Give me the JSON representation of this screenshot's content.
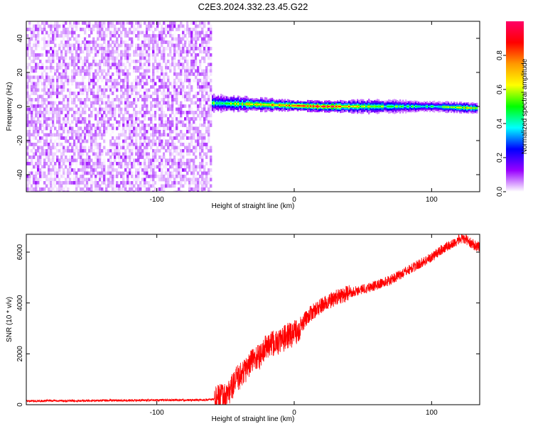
{
  "title": "C2E3.2024.332.23.45.G22",
  "chart_data": [
    {
      "type": "heatmap",
      "xlabel": "Height of straight line (km)",
      "ylabel": "Frequency (Hz)",
      "xlim": [
        -195,
        135
      ],
      "ylim": [
        -50,
        50
      ],
      "x_ticks": [
        -100,
        0,
        100
      ],
      "y_ticks": [
        -40,
        -20,
        0,
        20,
        40
      ],
      "noise_region": {
        "x": [
          -195,
          -60
        ],
        "y": [
          -50,
          50
        ],
        "value_range": [
          0.0,
          0.12
        ]
      },
      "signal_band": {
        "x": [
          -60,
          0,
          20,
          60,
          100,
          133
        ],
        "center_frequency": [
          2,
          0.5,
          0,
          0,
          0,
          -1
        ],
        "half_width_hz": [
          5,
          3,
          3,
          4,
          3,
          3
        ],
        "peak_amplitude": [
          0.5,
          0.8,
          0.95,
          0.5,
          0.45,
          0.7
        ]
      },
      "colorbar": {
        "label": "Normalized spectral amplitude",
        "range": [
          0,
          1
        ],
        "ticks": [
          0.0,
          0.2,
          0.4,
          0.6,
          0.8
        ],
        "tick_labels": [
          "0.0",
          "0.2",
          "0.4",
          "0.6",
          "0.8"
        ],
        "colors": [
          "#ffffff",
          "#9900ff",
          "#0000ff",
          "#00ffff",
          "#00ff00",
          "#ffff00",
          "#ff9900",
          "#ff0000",
          "#ff0066"
        ]
      }
    },
    {
      "type": "line",
      "xlabel": "Height of straight line (km)",
      "ylabel": "SNR (10 * v/v)",
      "xlim": [
        -195,
        135
      ],
      "ylim": [
        0,
        6700
      ],
      "x_ticks": [
        -100,
        0,
        100
      ],
      "y_ticks": [
        0,
        2000,
        4000,
        6000
      ],
      "series": [
        {
          "color": "#ff0000",
          "x": [
            -195,
            -150,
            -100,
            -70,
            -60,
            -50,
            -45,
            -42,
            -40,
            -35,
            -30,
            -25,
            -20,
            -15,
            -10,
            -5,
            0,
            5,
            10,
            20,
            30,
            40,
            50,
            60,
            70,
            80,
            90,
            100,
            105,
            110,
            115,
            120,
            125,
            130,
            135
          ],
          "values": [
            150,
            160,
            180,
            180,
            200,
            350,
            700,
            1000,
            1100,
            1400,
            1800,
            1900,
            2300,
            2400,
            2500,
            2700,
            2800,
            3100,
            3500,
            3900,
            4200,
            4400,
            4550,
            4700,
            4900,
            5200,
            5500,
            5800,
            6000,
            6200,
            6300,
            6500,
            6500,
            6300,
            6200
          ]
        }
      ]
    }
  ]
}
